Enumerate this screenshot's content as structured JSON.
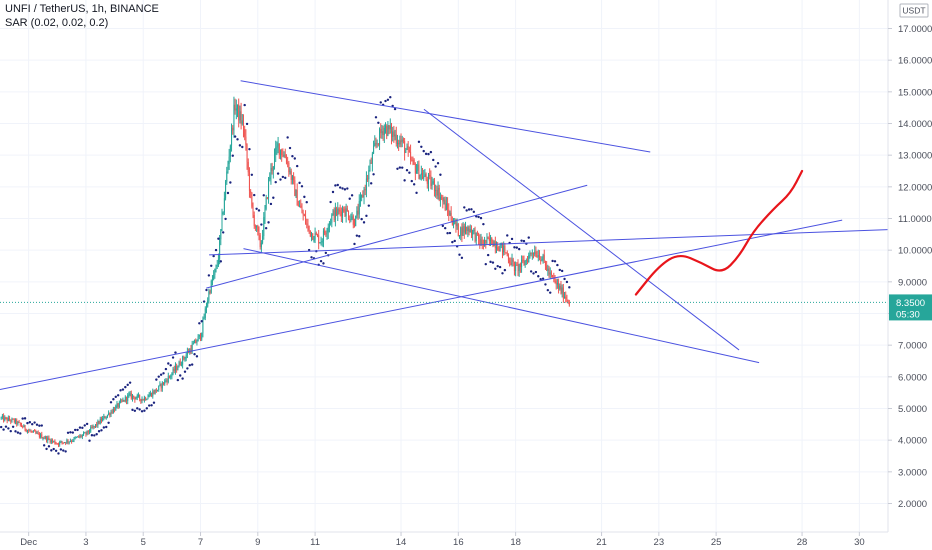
{
  "header": {
    "symbol": "UNFI / TetherUS, 1h, BINANCE",
    "indicator": "SAR (0.02, 0.02, 0.2)"
  },
  "chart_data": {
    "type": "candlestick",
    "currency_label": "USDT",
    "price_axis_ticks": [
      "17.0000",
      "16.0000",
      "15.0000",
      "14.0000",
      "13.0000",
      "12.0000",
      "11.0000",
      "10.0000",
      "9.0000",
      "8.0000",
      "7.0000",
      "6.0000",
      "5.0000",
      "4.0000",
      "3.0000",
      "2.0000"
    ],
    "price_axis_values": [
      17,
      16,
      15,
      14,
      13,
      12,
      11,
      10,
      9,
      8,
      7,
      6,
      5,
      4,
      3,
      2
    ],
    "time_axis_labels": [
      "Dec",
      "3",
      "5",
      "7",
      "9",
      "11",
      "14",
      "16",
      "18",
      "21",
      "23",
      "25",
      "28",
      "30"
    ],
    "time_axis_days": [
      1,
      3,
      5,
      7,
      9,
      11,
      14,
      16,
      18,
      21,
      23,
      25,
      28,
      30
    ],
    "ylim": [
      1.1,
      17.9
    ],
    "xlim_days": [
      0.0,
      31.0
    ],
    "last_price": "8.3500",
    "countdown": "05:30",
    "last_price_value": 8.35,
    "colors": {
      "up": "#26a69a",
      "down": "#ef5350",
      "trendline": "#4b52e0",
      "drawing": "#e8151b",
      "sar": "#1a237e",
      "label_bg": "#26a69a"
    },
    "price_path": [
      [
        0.0,
        4.7
      ],
      [
        0.5,
        4.6
      ],
      [
        1.0,
        4.3
      ],
      [
        1.5,
        4.1
      ],
      [
        2.0,
        3.9
      ],
      [
        2.5,
        4.0
      ],
      [
        3.0,
        4.2
      ],
      [
        3.5,
        4.6
      ],
      [
        4.0,
        5.0
      ],
      [
        4.5,
        5.4
      ],
      [
        5.0,
        5.3
      ],
      [
        5.5,
        5.6
      ],
      [
        6.0,
        6.1
      ],
      [
        6.5,
        6.7
      ],
      [
        7.0,
        7.3
      ],
      [
        7.3,
        8.7
      ],
      [
        7.6,
        9.6
      ],
      [
        7.9,
        12.3
      ],
      [
        8.2,
        14.6
      ],
      [
        8.5,
        13.9
      ],
      [
        8.8,
        11.2
      ],
      [
        9.1,
        10.1
      ],
      [
        9.4,
        12.3
      ],
      [
        9.7,
        13.3
      ],
      [
        10.0,
        12.9
      ],
      [
        10.4,
        11.5
      ],
      [
        10.8,
        10.6
      ],
      [
        11.2,
        10.3
      ],
      [
        11.6,
        11.1
      ],
      [
        12.0,
        11.3
      ],
      [
        12.4,
        10.9
      ],
      [
        12.8,
        12.2
      ],
      [
        13.1,
        13.3
      ],
      [
        13.4,
        13.9
      ],
      [
        13.8,
        13.6
      ],
      [
        14.1,
        13.3
      ],
      [
        14.4,
        12.7
      ],
      [
        14.8,
        12.3
      ],
      [
        15.2,
        12.0
      ],
      [
        15.6,
        11.3
      ],
      [
        16.0,
        10.6
      ],
      [
        16.4,
        10.7
      ],
      [
        16.8,
        10.2
      ],
      [
        17.2,
        10.3
      ],
      [
        17.6,
        10.0
      ],
      [
        18.0,
        9.4
      ],
      [
        18.3,
        9.6
      ],
      [
        18.6,
        10.0
      ],
      [
        18.9,
        9.8
      ],
      [
        19.2,
        9.2
      ],
      [
        19.6,
        8.7
      ],
      [
        19.9,
        8.35
      ]
    ],
    "trendlines": [
      {
        "from": [
          0.0,
          5.6
        ],
        "to": [
          29.4,
          10.95
        ]
      },
      {
        "from": [
          8.4,
          15.35
        ],
        "to": [
          22.7,
          13.1
        ]
      },
      {
        "from": [
          7.2,
          8.8
        ],
        "to": [
          20.5,
          12.05
        ]
      },
      {
        "from": [
          7.3,
          9.85
        ],
        "to": [
          31.0,
          10.65
        ]
      },
      {
        "from": [
          8.5,
          10.05
        ],
        "to": [
          26.5,
          6.45
        ]
      },
      {
        "from": [
          14.8,
          14.45
        ],
        "to": [
          25.8,
          6.85
        ]
      }
    ],
    "hand_drawn_projection": [
      [
        22.2,
        8.6
      ],
      [
        23.0,
        9.5
      ],
      [
        23.7,
        9.9
      ],
      [
        24.5,
        9.6
      ],
      [
        25.2,
        9.25
      ],
      [
        25.8,
        9.8
      ],
      [
        26.3,
        10.6
      ],
      [
        27.0,
        11.3
      ],
      [
        27.6,
        11.8
      ],
      [
        28.0,
        12.5
      ]
    ]
  }
}
